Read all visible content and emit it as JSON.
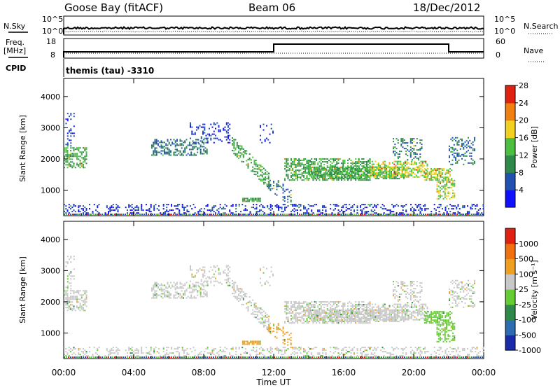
{
  "header": {
    "radar": "Goose Bay (fitACF)",
    "beam": "Beam 06",
    "date": "18/Dec/2012"
  },
  "top_panels": {
    "nsky_label": "N.Sky",
    "nsearch_label": "N.Search",
    "freq_label_line1": "Freq.",
    "freq_label_line2": "[MHz]",
    "nave_label": "Nave",
    "cpid_label": "CPID",
    "cpid_value": "themis (tau) -3310",
    "noise_ticks_left": [
      "10^5",
      "10^0"
    ],
    "noise_ticks_right": [
      "10^5",
      "10^0"
    ],
    "freq_ticks_left": [
      "18",
      "8"
    ],
    "nave_ticks_right": [
      "60",
      "0"
    ]
  },
  "chart_data": [
    {
      "type": "heatmap",
      "name": "power",
      "ylabel": "Slant Range [km]",
      "yticks": [
        "1000",
        "2000",
        "3000",
        "4000"
      ],
      "ylim": [
        180,
        4580
      ],
      "xlim_hours": [
        0,
        24
      ],
      "colorbar_label": "Power [dB]",
      "colorbar_ticks": [
        "4",
        "8",
        "12",
        "16",
        "20",
        "24",
        "28"
      ],
      "colorbar_colors": [
        "#1010ff",
        "#2050b0",
        "#2f8a4a",
        "#4cbf40",
        "#f2d020",
        "#f08010",
        "#e02010"
      ]
    },
    {
      "type": "heatmap",
      "name": "velocity",
      "ylabel": "Slant Range [km]",
      "yticks": [
        "1000",
        "2000",
        "3000",
        "4000"
      ],
      "ylim": [
        180,
        4580
      ],
      "xlim_hours": [
        0,
        24
      ],
      "colorbar_label": "Velocity [m s⁻¹]",
      "colorbar_ticks": [
        "1000",
        "500",
        "100",
        "25",
        "-25",
        "-100",
        "-500",
        "-1000"
      ],
      "colorbar_colors": [
        "#1a2aa8",
        "#2d6cb0",
        "#2f8a4a",
        "#66cc33",
        "#c8c8c8",
        "#f0a020",
        "#f07010",
        "#e02010"
      ]
    }
  ],
  "x_axis": {
    "ticks": [
      "00:00",
      "04:00",
      "08:00",
      "12:00",
      "16:00",
      "20:00",
      "00:00"
    ],
    "label": "Time UT"
  },
  "series_trends": {
    "nave_freq_step_hours": [
      12.0,
      22.0
    ],
    "noise_level_note": "near-constant"
  }
}
